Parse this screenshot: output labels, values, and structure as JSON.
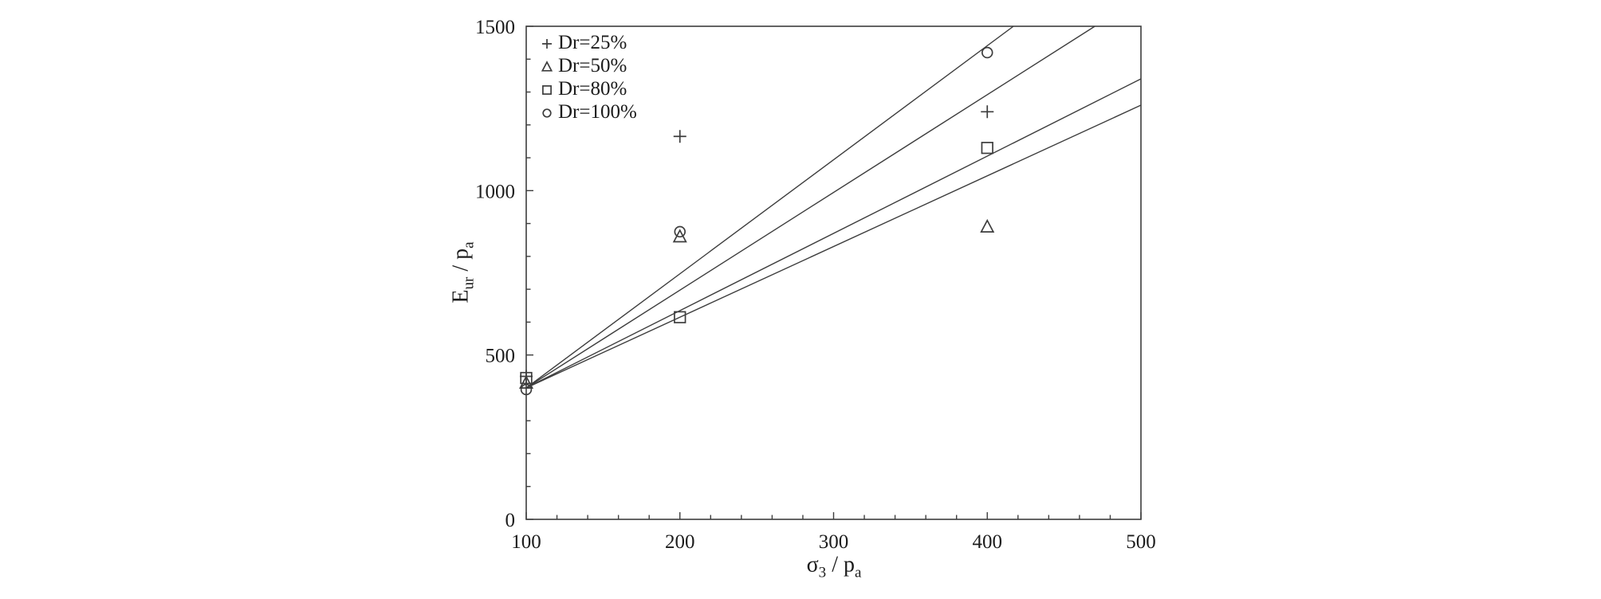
{
  "figure": {
    "background": "#ffffff",
    "ink_color": "#3d3d3d",
    "text_color": "#1c1c1c"
  },
  "chart_data": {
    "type": "scatter",
    "title": "",
    "grid": false,
    "legend_position": "top-left-inside",
    "xlabel": {
      "base": "σ",
      "sub": "3",
      "sep": " / ",
      "base2": "p",
      "sub2": "a"
    },
    "ylabel": {
      "base": "E",
      "sub": "ur",
      "sep": " / ",
      "base2": "p",
      "sub2": "a"
    },
    "x_axis": {
      "min": 100,
      "max": 500,
      "major_ticks": [
        100,
        200,
        300,
        400,
        500
      ],
      "minor_step": 20
    },
    "y_axis": {
      "min": 0,
      "max": 1500,
      "major_ticks": [
        0,
        500,
        1000,
        1500
      ],
      "minor_step": 100
    },
    "series": [
      {
        "name": "Dr=25%",
        "marker": "plus",
        "points": [
          [
            100,
            435
          ],
          [
            200,
            1165
          ],
          [
            400,
            1240
          ]
        ]
      },
      {
        "name": "Dr=50%",
        "marker": "triangle",
        "points": [
          [
            100,
            415
          ],
          [
            200,
            860
          ],
          [
            400,
            890
          ]
        ]
      },
      {
        "name": "Dr=80%",
        "marker": "square",
        "points": [
          [
            100,
            430
          ],
          [
            200,
            615
          ],
          [
            400,
            1130
          ]
        ]
      },
      {
        "name": "Dr=100%",
        "marker": "circle",
        "points": [
          [
            100,
            395
          ],
          [
            200,
            875
          ],
          [
            400,
            1420
          ]
        ]
      }
    ],
    "fit_lines": [
      {
        "name": "fit-line-dr100",
        "from": [
          100,
          400
        ],
        "to": [
          417,
          1500
        ]
      },
      {
        "name": "fit-line-dr25",
        "from": [
          100,
          400
        ],
        "to": [
          470,
          1500
        ]
      },
      {
        "name": "fit-line-dr80",
        "from": [
          100,
          400
        ],
        "to": [
          500,
          1340
        ]
      },
      {
        "name": "fit-line-dr50",
        "from": [
          100,
          400
        ],
        "to": [
          500,
          1260
        ]
      }
    ]
  }
}
